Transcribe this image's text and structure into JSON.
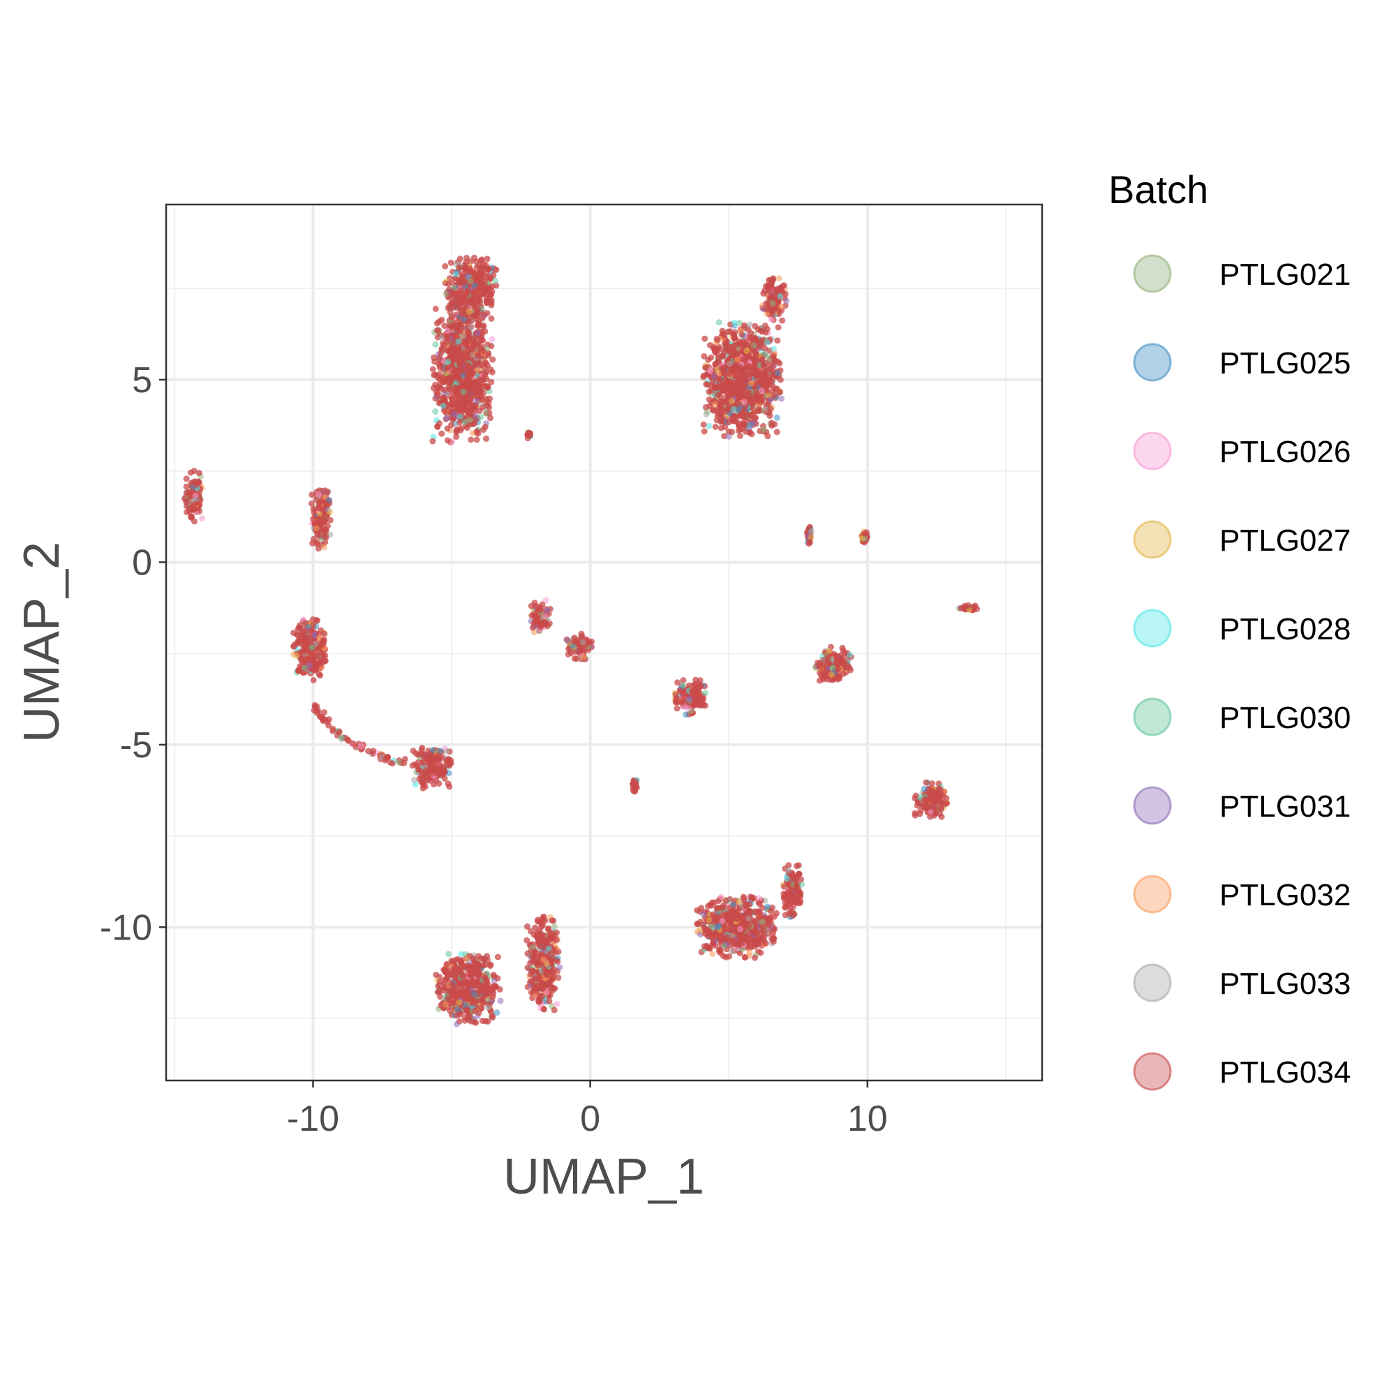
{
  "chart_data": {
    "type": "scatter",
    "title": "",
    "xlabel": "UMAP_1",
    "ylabel": "UMAP_2",
    "xlim": [
      -15.3,
      16.3
    ],
    "ylim": [
      -14.2,
      9.8
    ],
    "x_ticks": [
      -10,
      0,
      10
    ],
    "x_tick_labels": [
      "-10",
      "0",
      "10"
    ],
    "y_ticks": [
      -10,
      -5,
      0,
      5
    ],
    "y_tick_labels": [
      "-10",
      "-5",
      "0",
      "5"
    ],
    "grid": true,
    "legend": {
      "title": "Batch",
      "position": "right",
      "entries": [
        {
          "name": "PTLG021",
          "color": "#8fb07a"
        },
        {
          "name": "PTLG025",
          "color": "#3f8fc3"
        },
        {
          "name": "PTLG026",
          "color": "#f99ad3"
        },
        {
          "name": "PTLG027",
          "color": "#e3b447"
        },
        {
          "name": "PTLG028",
          "color": "#52e6e6"
        },
        {
          "name": "PTLG030",
          "color": "#63c49b"
        },
        {
          "name": "PTLG031",
          "color": "#8e6cb8"
        },
        {
          "name": "PTLG032",
          "color": "#fb9a5a"
        },
        {
          "name": "PTLG033",
          "color": "#a8a8a8"
        },
        {
          "name": "PTLG034",
          "color": "#c94a4a"
        }
      ]
    },
    "clusters": [
      {
        "x": -4.6,
        "y": 5.2,
        "sx": 0.9,
        "sy": 1.6
      },
      {
        "x": -4.3,
        "y": 7.5,
        "sx": 0.8,
        "sy": 0.7
      },
      {
        "x": 5.5,
        "y": 5.0,
        "sx": 1.2,
        "sy": 1.3
      },
      {
        "x": 6.6,
        "y": 7.2,
        "sx": 0.4,
        "sy": 0.5
      },
      {
        "x": -14.3,
        "y": 1.8,
        "sx": 0.3,
        "sy": 0.6
      },
      {
        "x": -9.7,
        "y": 1.2,
        "sx": 0.3,
        "sy": 0.7
      },
      {
        "x": -10.1,
        "y": -2.4,
        "sx": 0.5,
        "sy": 0.7
      },
      {
        "x": -1.8,
        "y": -1.5,
        "sx": 0.3,
        "sy": 0.4
      },
      {
        "x": -0.4,
        "y": -2.3,
        "sx": 0.4,
        "sy": 0.3
      },
      {
        "x": 3.6,
        "y": -3.7,
        "sx": 0.5,
        "sy": 0.4
      },
      {
        "x": 8.8,
        "y": -2.8,
        "sx": 0.6,
        "sy": 0.4
      },
      {
        "x": -5.7,
        "y": -5.6,
        "sx": 0.6,
        "sy": 0.5
      },
      {
        "x": 12.3,
        "y": -6.5,
        "sx": 0.5,
        "sy": 0.4
      },
      {
        "x": -4.4,
        "y": -11.7,
        "sx": 1.0,
        "sy": 0.8
      },
      {
        "x": -1.7,
        "y": -11.0,
        "sx": 0.5,
        "sy": 1.1
      },
      {
        "x": 5.3,
        "y": -10.0,
        "sx": 1.2,
        "sy": 0.7
      },
      {
        "x": 7.3,
        "y": -9.0,
        "sx": 0.3,
        "sy": 0.6
      },
      {
        "x": 13.7,
        "y": -1.25,
        "sx": 0.35,
        "sy": 0.06
      },
      {
        "x": 7.9,
        "y": 0.8,
        "sx": 0.1,
        "sy": 0.3
      },
      {
        "x": 9.9,
        "y": 0.7,
        "sx": 0.1,
        "sy": 0.15
      },
      {
        "x": 1.6,
        "y": -6.1,
        "sx": 0.08,
        "sy": 0.2
      },
      {
        "x": -2.2,
        "y": 3.5,
        "sx": 0.08,
        "sy": 0.1
      }
    ],
    "trajectory": [
      [
        -10.0,
        -3.8
      ],
      [
        -9.6,
        -4.3
      ],
      [
        -9.0,
        -4.8
      ],
      [
        -8.2,
        -5.1
      ],
      [
        -7.4,
        -5.35
      ],
      [
        -6.6,
        -5.5
      ]
    ]
  }
}
